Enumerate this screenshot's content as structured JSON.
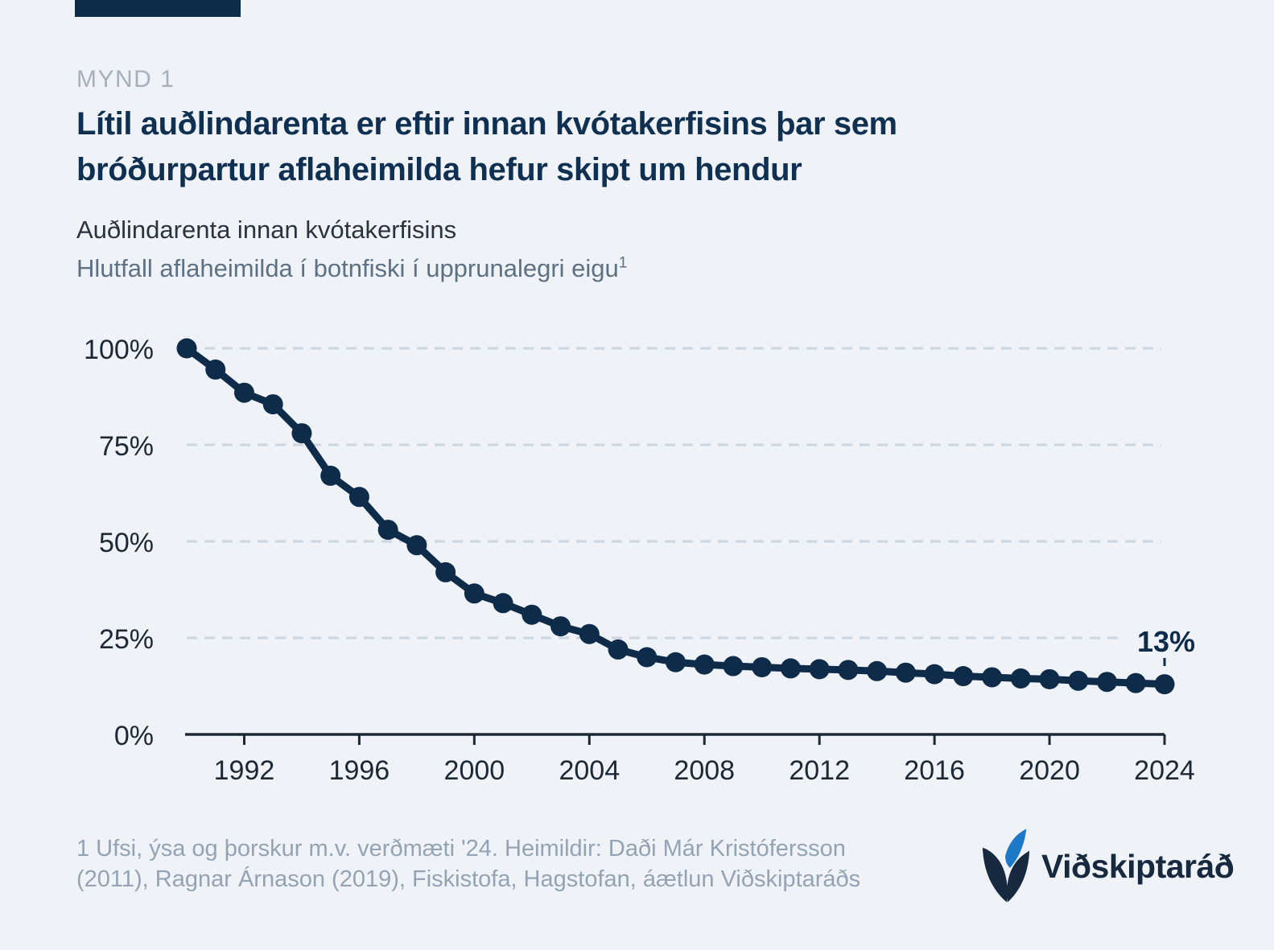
{
  "figure_label": "MYND 1",
  "title_line1": "Lítil auðlindarenta er eftir innan kvótakerfisins þar sem",
  "title_line2": "bróðurpartur aflaheimilda hefur skipt um hendur",
  "subtitle_line1": "Auðlindarenta innan kvótakerfisins",
  "subtitle_line2": "Hlutfall aflaheimilda í botnfiski í upprunalegri eigu",
  "subtitle_footnote_marker": "1",
  "footnote_line1": "1 Ufsi, ýsa og þorskur m.v. verðmæti '24. Heimildir: Daði Már Kristófersson",
  "footnote_line2": "(2011), Ragnar Árnason (2019), Fiskistofa, Hagstofan, áætlun Viðskiptaráðs",
  "logo_text": "Viðskiptaráð",
  "colors": {
    "background": "#eff3f8",
    "accent_bar": "#0d2c4a",
    "title": "#103052",
    "figure_label": "#a6b0bd",
    "subtitle": "#2a333e",
    "subtitle_secondary": "#5e7083",
    "line": "#0e2b49",
    "grid": "#cbd5e0",
    "axis": "#1d2835",
    "annotation": "#0e2b49",
    "footnote": "#94a3b3",
    "logo_blue": "#1e78c8",
    "logo_navy": "#16293e"
  },
  "chart_data": {
    "type": "line",
    "title": "Auðlindarenta innan kvótakerfisins",
    "subtitle": "Hlutfall aflaheimilda í botnfiski í upprunalegri eigu",
    "x": [
      1990,
      1991,
      1992,
      1993,
      1994,
      1995,
      1996,
      1997,
      1998,
      1999,
      2000,
      2001,
      2002,
      2003,
      2004,
      2005,
      2006,
      2007,
      2008,
      2009,
      2010,
      2011,
      2012,
      2013,
      2014,
      2015,
      2016,
      2017,
      2018,
      2019,
      2020,
      2021,
      2022,
      2023,
      2024
    ],
    "values": [
      100,
      94.5,
      88.5,
      85.5,
      78,
      67,
      61.5,
      53,
      49,
      42,
      36.5,
      34,
      31,
      28,
      26,
      22,
      20,
      18.7,
      18.1,
      17.7,
      17.4,
      17.1,
      16.9,
      16.7,
      16.4,
      16,
      15.6,
      15.1,
      14.8,
      14.5,
      14.3,
      13.9,
      13.6,
      13.3,
      13
    ],
    "xlim": [
      1990,
      2024
    ],
    "ylim": [
      0,
      100
    ],
    "xticks": [
      1992,
      1996,
      2000,
      2004,
      2008,
      2012,
      2016,
      2020,
      2024
    ],
    "yticks": [
      {
        "value": 100,
        "label": "100%"
      },
      {
        "value": 75,
        "label": "75%"
      },
      {
        "value": 50,
        "label": "50%"
      },
      {
        "value": 25,
        "label": "25%"
      },
      {
        "value": 0,
        "label": "0%"
      }
    ],
    "grid": "horizontal-dashed",
    "legend": "none",
    "markers": "circle",
    "annotation": {
      "year": 2024,
      "value": 13,
      "label": "13%"
    }
  }
}
